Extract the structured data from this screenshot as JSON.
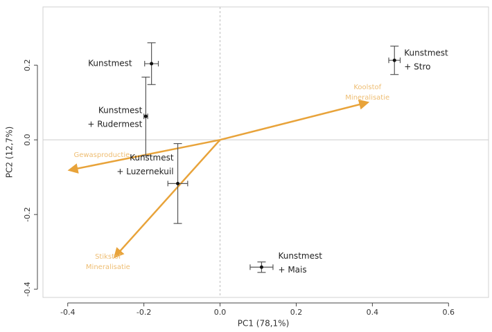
{
  "chart_data": {
    "type": "scatter",
    "x_label": "PC1 (78,1%)",
    "y_label": "PC2 (12,7%)",
    "xlim": [
      -0.465,
      0.705
    ],
    "ylim": [
      -0.422,
      0.356
    ],
    "xticks": [
      -0.4,
      -0.2,
      {
        "value": 0,
        "label": "0.0"
      },
      0.2,
      0.4,
      0.6
    ],
    "yticks": [
      -0.4,
      -0.2,
      {
        "value": 0,
        "label": "0.0"
      },
      0.2
    ],
    "point_color": "#111111",
    "arrow_color": "#e8a33a",
    "points": [
      {
        "label": [
          "Kunstmest"
        ],
        "x": -0.18,
        "y": 0.204,
        "xerr": 0.018,
        "yerr": 0.056
      },
      {
        "label": [
          "Kunstmest",
          "+ Stro"
        ],
        "x": 0.458,
        "y": 0.213,
        "xerr": 0.015,
        "yerr": 0.038
      },
      {
        "label": [
          "Kunstmest",
          "+ Rudermest"
        ],
        "x": -0.195,
        "y": 0.063,
        "xerr": 0.005,
        "yerr": 0.105
      },
      {
        "label": [
          "Kunstmest",
          "+ Luzernekuil"
        ],
        "x": -0.111,
        "y": -0.117,
        "xerr": 0.026,
        "yerr": 0.107
      },
      {
        "label": [
          "Kunstmest",
          "+ Mais"
        ],
        "x": 0.109,
        "y": -0.341,
        "xerr": 0.03,
        "yerr": 0.014
      }
    ],
    "arrows": [
      {
        "label": [
          "Koolstof",
          "Mineralisatie"
        ],
        "x": 0.387,
        "y": 0.1
      },
      {
        "label": [
          "Gewasproductie"
        ],
        "x": -0.395,
        "y": -0.081
      },
      {
        "label": [
          "Stikstof",
          "Mineralisatie"
        ],
        "x": -0.276,
        "y": -0.313
      }
    ]
  }
}
